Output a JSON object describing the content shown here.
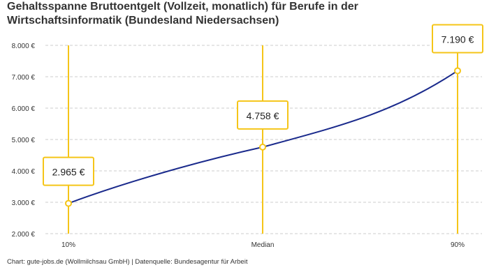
{
  "chart_data": {
    "type": "line",
    "title": "Gehaltsspanne Bruttoentgelt (Vollzeit, monatlich) für Berufe in der Wirtschaftsinformatik (Bundesland Niedersachsen)",
    "categories": [
      "10%",
      "Median",
      "90%"
    ],
    "values": [
      2965,
      4758,
      7190
    ],
    "data_labels": [
      "2.965 €",
      "4.758 €",
      "7.190 €"
    ],
    "ylim": [
      2000,
      8000
    ],
    "yticks": [
      2000,
      3000,
      4000,
      5000,
      6000,
      7000,
      8000
    ],
    "ytick_labels": [
      "2.000 €",
      "3.000 €",
      "4.000 €",
      "5.000 €",
      "6.000 €",
      "7.000 €",
      "8.000 €"
    ],
    "grid": true,
    "colors": {
      "line": "#1a2a8c",
      "accent": "#f5c518",
      "grid": "#cccccc"
    }
  },
  "source": "Chart: gute-jobs.de (Wollmilchsau GmbH) | Datenquelle: Bundesagentur für Arbeit"
}
